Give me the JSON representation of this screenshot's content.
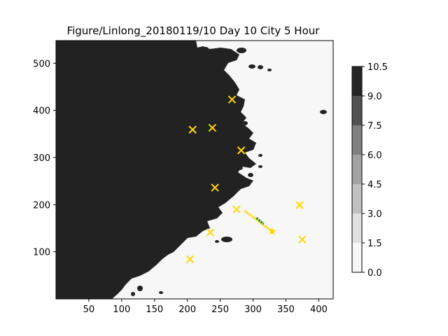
{
  "chart_data": {
    "type": "heatmap",
    "title": "Figure/Linlong_20180119/10 Day 10 City 5 Hour",
    "xlabel": "",
    "ylabel": "",
    "xlim": [
      0,
      422
    ],
    "ylim": [
      0,
      548
    ],
    "x_ticks": [
      50,
      100,
      150,
      200,
      250,
      300,
      350,
      400
    ],
    "y_ticks": [
      100,
      200,
      300,
      400,
      500
    ],
    "colorbar": {
      "boundaries": [
        0.0,
        1.5,
        3.0,
        4.5,
        6.0,
        7.5,
        9.0,
        10.5
      ],
      "tick_labels": [
        "0.0",
        "1.5",
        "3.0",
        "4.5",
        "6.0",
        "7.5",
        "9.0",
        "10.5"
      ],
      "colors": [
        "#f7f7f7",
        "#e0e0e0",
        "#c0c0c0",
        "#a3a3a3",
        "#808080",
        "#525252",
        "#262626"
      ]
    },
    "land_value": 10.0,
    "sea_value": 0.0,
    "colors": {
      "land": "#222222",
      "sea": "#f7f7f7",
      "city_marker": "#ffd700",
      "route_yellow": "#ffd700",
      "route_green": "#228b22"
    },
    "cities": [
      {
        "x": 268,
        "y": 423
      },
      {
        "x": 208,
        "y": 359
      },
      {
        "x": 238,
        "y": 363
      },
      {
        "x": 282,
        "y": 315
      },
      {
        "x": 242,
        "y": 236
      },
      {
        "x": 275,
        "y": 190
      },
      {
        "x": 371,
        "y": 199
      },
      {
        "x": 235,
        "y": 141
      },
      {
        "x": 375,
        "y": 126
      },
      {
        "x": 204,
        "y": 84
      }
    ],
    "route": {
      "start": {
        "x": 287,
        "y": 187
      },
      "end": {
        "x": 329,
        "y": 143
      },
      "green_segment": {
        "from": {
          "x": 305,
          "y": 172
        },
        "to": {
          "x": 316,
          "y": 159
        }
      }
    }
  }
}
